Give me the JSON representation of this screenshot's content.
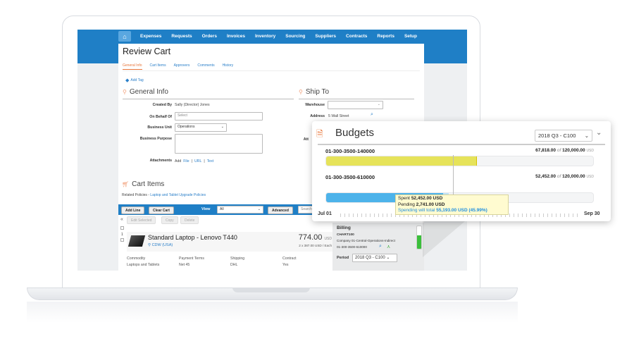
{
  "nav": {
    "items": [
      "Expenses",
      "Requests",
      "Orders",
      "Invoices",
      "Inventory",
      "Sourcing",
      "Suppliers",
      "Contracts",
      "Reports",
      "Setup"
    ]
  },
  "page": {
    "title": "Review Cart",
    "tabs": [
      "General Info",
      "Cart Items",
      "Approvers",
      "Comments",
      "History"
    ],
    "add_tag": "Add Tag"
  },
  "general": {
    "title": "General Info",
    "created_by_label": "Created By",
    "created_by": "Sally (Director) Jones",
    "behalf_label": "On Behalf Of",
    "behalf_placeholder": "Select",
    "unit_label": "Business Unit",
    "unit": "Operations",
    "purpose_label": "Business Purpose",
    "attach_label": "Attachments",
    "attach_add": "Add",
    "attach_file": "File",
    "attach_url": "URL",
    "attach_text": "Text",
    "sep": "|"
  },
  "ship": {
    "title": "Ship To",
    "warehouse_label": "Warehouse",
    "address_label": "Address",
    "address": "5 Wall Street",
    "att_label": "Att"
  },
  "cart": {
    "title": "Cart Items",
    "policies_label": "Related Policies -",
    "policies_link": "Laptop and Tablet Upgrade Policies",
    "add_line": "Add Line",
    "clear_cart": "Clear Cart",
    "view_label": "View",
    "view_value": "All",
    "advanced": "Advanced",
    "search_placeholder": "Search",
    "edit_selected": "Edit Selected",
    "copy": "Copy",
    "delete": "Delete",
    "row_num": "1",
    "item": {
      "name": "Standard Laptop - Lenovo T440",
      "supplier": "CDW (USA)",
      "price": "774.00",
      "currency": "USD",
      "unit_detail": "2 x 387.00 USD / Each",
      "fields": [
        {
          "label": "Commodity",
          "value": "Laptops and Tablets"
        },
        {
          "label": "Payment Terms",
          "value": "Net 45"
        },
        {
          "label": "Shipping",
          "value": "DHL"
        },
        {
          "label": "Contract",
          "value": "Yes"
        }
      ]
    }
  },
  "billing": {
    "title": "Billing",
    "chart": "CHART100",
    "company": "Company 01-Central-Operations-Indirect",
    "account": "01-300-3500-610000",
    "period_label": "Period",
    "period": "2018 Q3 - C100",
    "budget_level": 0.6
  },
  "budgets": {
    "title": "Budgets",
    "period": "2018 Q3 - C100",
    "colors": {
      "spent1": "#e6e35a",
      "spent2": "#4db3ea",
      "pending": "#bfe2f7"
    },
    "accounts": [
      {
        "code": "01-300-3500-140000",
        "spent": "67,818.00",
        "of": "of",
        "total": "120,000.00",
        "currency": "USD",
        "spent_value": 67818,
        "pending_value": 0,
        "total_value": 120000
      },
      {
        "code": "01-300-3500-610000",
        "spent": "52,452.00",
        "of": "of",
        "total": "120,000.00",
        "currency": "USD",
        "spent_value": 52452,
        "pending_value": 2741,
        "total_value": 120000
      }
    ],
    "tooltip": {
      "spent_label": "Spent",
      "spent": "52,452.00 USD",
      "pending_label": "Pending",
      "pending": "2,741.00 USD",
      "total_label": "Spending will total",
      "total": "55,193.00 USD (45.99%)"
    },
    "timeline": {
      "start": "Jul 01",
      "end": "Sep 30",
      "today_fraction": 0.475
    }
  }
}
